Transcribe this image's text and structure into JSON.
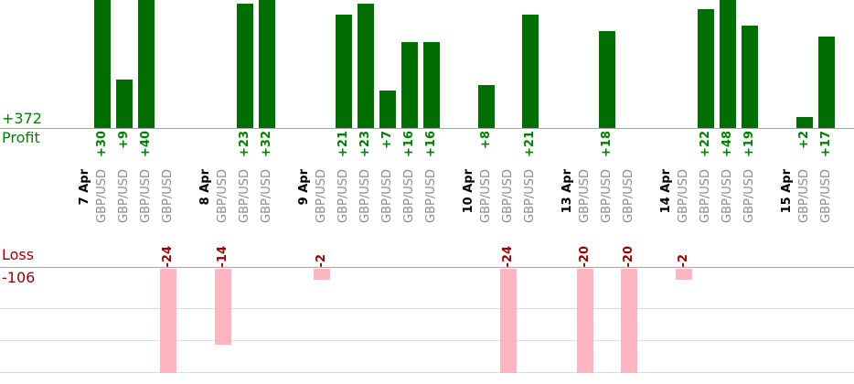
{
  "chart_data": {
    "type": "bar",
    "title": "",
    "symbol": "GBP/USD",
    "profit": {
      "axis_label": "Profit",
      "total_label": "+372",
      "total_value": 372
    },
    "loss": {
      "axis_label": "Loss",
      "total_label": "-106",
      "total_value": -106
    },
    "groups": [
      {
        "date": "7 Apr",
        "trades": [
          {
            "symbol": "GBP/USD",
            "value": 30,
            "label": "+30"
          },
          {
            "symbol": "GBP/USD",
            "value": 9,
            "label": "+9"
          },
          {
            "symbol": "GBP/USD",
            "value": 40,
            "label": "+40"
          },
          {
            "symbol": "GBP/USD",
            "value": -24,
            "label": "-24"
          }
        ]
      },
      {
        "date": "8 Apr",
        "trades": [
          {
            "symbol": "GBP/USD",
            "value": -14,
            "label": "-14"
          },
          {
            "symbol": "GBP/USD",
            "value": 23,
            "label": "+23"
          },
          {
            "symbol": "GBP/USD",
            "value": 32,
            "label": "+32"
          }
        ]
      },
      {
        "date": "9 Apr",
        "trades": [
          {
            "symbol": "GBP/USD",
            "value": -2,
            "label": "-2"
          },
          {
            "symbol": "GBP/USD",
            "value": 21,
            "label": "+21"
          },
          {
            "symbol": "GBP/USD",
            "value": 23,
            "label": "+23"
          },
          {
            "symbol": "GBP/USD",
            "value": 7,
            "label": "+7"
          },
          {
            "symbol": "GBP/USD",
            "value": 16,
            "label": "+16"
          },
          {
            "symbol": "GBP/USD",
            "value": 16,
            "label": "+16"
          }
        ]
      },
      {
        "date": "10 Apr",
        "trades": [
          {
            "symbol": "GBP/USD",
            "value": 8,
            "label": "+8"
          },
          {
            "symbol": "GBP/USD",
            "value": -24,
            "label": "-24"
          },
          {
            "symbol": "GBP/USD",
            "value": 21,
            "label": "+21"
          }
        ]
      },
      {
        "date": "13 Apr",
        "trades": [
          {
            "symbol": "GBP/USD",
            "value": -20,
            "label": "-20"
          },
          {
            "symbol": "GBP/USD",
            "value": 18,
            "label": "+18"
          },
          {
            "symbol": "GBP/USD",
            "value": -20,
            "label": "-20"
          }
        ]
      },
      {
        "date": "14 Apr",
        "trades": [
          {
            "symbol": "GBP/USD",
            "value": -2,
            "label": "-2"
          },
          {
            "symbol": "GBP/USD",
            "value": 22,
            "label": "+22"
          },
          {
            "symbol": "GBP/USD",
            "value": 48,
            "label": "+48"
          },
          {
            "symbol": "GBP/USD",
            "value": 19,
            "label": "+19"
          }
        ]
      },
      {
        "date": "15 Apr",
        "trades": [
          {
            "symbol": "GBP/USD",
            "value": 2,
            "label": "+2"
          },
          {
            "symbol": "GBP/USD",
            "value": 17,
            "label": "+17"
          }
        ]
      }
    ],
    "colors": {
      "profit_bar": "#006e00",
      "profit_text": "#008000",
      "loss_bar": "#ffb6c1",
      "loss_text": "#990000",
      "date_text": "#000000",
      "symbol_text": "#8c8c8c",
      "baseline": "#a6a6a6",
      "gridline": "#dcdcdc",
      "background": "#ffffff"
    },
    "layout_hints": {
      "x_labels_rotated": true,
      "value_labels_rotated": true,
      "profit_bars_direction": "up",
      "loss_bars_direction": "down",
      "grouped_by": "date",
      "legend": "none",
      "grid": "horizontal-faint"
    }
  }
}
